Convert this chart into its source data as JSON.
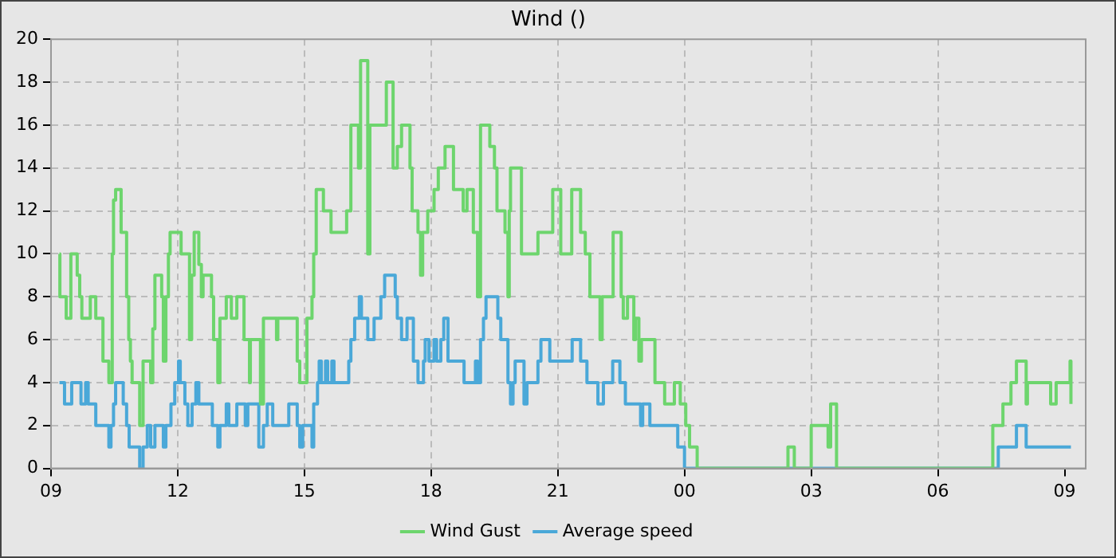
{
  "chart_data": {
    "type": "step",
    "title": "Wind ()",
    "xlim": [
      9,
      33.5
    ],
    "xticks": [
      {
        "value": 9,
        "label": "09"
      },
      {
        "value": 12,
        "label": "12"
      },
      {
        "value": 15,
        "label": "15"
      },
      {
        "value": 18,
        "label": "18"
      },
      {
        "value": 21,
        "label": "21"
      },
      {
        "value": 24,
        "label": "00"
      },
      {
        "value": 27,
        "label": "03"
      },
      {
        "value": 30,
        "label": "06"
      },
      {
        "value": 33,
        "label": "09"
      }
    ],
    "ylim": [
      0,
      20
    ],
    "yticks": [
      0,
      2,
      4,
      6,
      8,
      10,
      12,
      14,
      16,
      18,
      20
    ],
    "grid": true,
    "legend": "bottom",
    "marker": "none",
    "line_style": "solid",
    "series": [
      {
        "name": "Wind Gust",
        "color": "#6dd56d",
        "x": [
          9.2,
          9.21,
          9.36,
          9.47,
          9.62,
          9.68,
          9.73,
          9.93,
          10.06,
          10.23,
          10.37,
          10.45,
          10.48,
          10.53,
          10.66,
          10.79,
          10.84,
          10.88,
          10.92,
          11.1,
          11.18,
          11.36,
          11.41,
          11.46,
          11.62,
          11.66,
          11.72,
          11.78,
          11.82,
          12.08,
          12.28,
          12.33,
          12.39,
          12.5,
          12.56,
          12.6,
          12.8,
          12.85,
          12.95,
          13.0,
          13.15,
          13.27,
          13.4,
          13.57,
          13.7,
          13.72,
          13.96,
          14.03,
          14.34,
          14.37,
          14.83,
          14.89,
          15.06,
          15.18,
          15.22,
          15.28,
          15.45,
          15.63,
          16.0,
          16.1,
          16.28,
          16.33,
          16.5,
          16.55,
          16.94,
          17.1,
          17.2,
          17.3,
          17.5,
          17.55,
          17.69,
          17.75,
          17.8,
          17.92,
          18.07,
          18.17,
          18.33,
          18.53,
          18.76,
          18.85,
          19.0,
          19.1,
          19.17,
          19.39,
          19.5,
          19.56,
          19.75,
          19.82,
          19.85,
          19.88,
          20.14,
          20.53,
          20.88,
          21.07,
          21.33,
          21.54,
          21.65,
          21.76,
          22.0,
          22.05,
          22.31,
          22.5,
          22.55,
          22.65,
          22.8,
          22.84,
          22.92,
          22.98,
          23.3,
          23.53,
          23.76,
          23.9,
          24.03,
          24.12,
          24.3,
          26.45,
          26.6,
          27.0,
          27.4,
          27.46,
          27.6,
          31.3,
          31.54,
          31.73,
          31.86,
          32.09,
          32.12,
          32.67,
          32.8,
          33.13,
          33.15
        ],
        "values": [
          10,
          8,
          7,
          10,
          9,
          8,
          7,
          8,
          7,
          5,
          4,
          10,
          12.5,
          13,
          11,
          8,
          6,
          5,
          4,
          2,
          5,
          4,
          6.5,
          9,
          8,
          5,
          8,
          10,
          11,
          10,
          6,
          9,
          11,
          9.5,
          8,
          9,
          8,
          6,
          4,
          7,
          8,
          7,
          8,
          6,
          4,
          6,
          3,
          7,
          6,
          7,
          5,
          4,
          7,
          8,
          10,
          13,
          12,
          11,
          12,
          16,
          14,
          19,
          10,
          16,
          18,
          14,
          15,
          16,
          14,
          12,
          11,
          9,
          11,
          12,
          13,
          14,
          15,
          13,
          12,
          13,
          11,
          8,
          16,
          15,
          14,
          12,
          11,
          8,
          12,
          14,
          10,
          11,
          13,
          10,
          13,
          11,
          10,
          8,
          6,
          8,
          11,
          8,
          7,
          8,
          6,
          7,
          5,
          6,
          4,
          3,
          4,
          3,
          2,
          1,
          0,
          1,
          0,
          2,
          1,
          3,
          0,
          2,
          3,
          4,
          5,
          3,
          4,
          3,
          4,
          5,
          3
        ]
      },
      {
        "name": "Average speed",
        "color": "#4aa8d8",
        "x": [
          9.2,
          9.32,
          9.49,
          9.71,
          9.82,
          9.88,
          10.06,
          10.37,
          10.42,
          10.48,
          10.53,
          10.71,
          10.79,
          10.85,
          11.1,
          11.18,
          11.28,
          11.36,
          11.46,
          11.66,
          11.72,
          11.84,
          11.93,
          12.02,
          12.06,
          12.17,
          12.24,
          12.34,
          12.43,
          12.5,
          12.82,
          12.95,
          13.0,
          13.15,
          13.21,
          13.4,
          13.6,
          13.66,
          13.92,
          14.03,
          14.12,
          14.25,
          14.63,
          14.83,
          14.89,
          14.96,
          15.18,
          15.22,
          15.31,
          15.35,
          15.4,
          15.5,
          15.55,
          15.65,
          15.7,
          16.05,
          16.1,
          16.19,
          16.3,
          16.35,
          16.5,
          16.65,
          16.81,
          16.9,
          17.15,
          17.2,
          17.3,
          17.43,
          17.58,
          17.69,
          17.82,
          17.86,
          17.95,
          18.07,
          18.13,
          18.23,
          18.3,
          18.4,
          18.78,
          19.05,
          19.1,
          19.17,
          19.24,
          19.3,
          19.58,
          19.65,
          19.82,
          19.88,
          19.94,
          19.99,
          20.2,
          20.27,
          20.53,
          20.6,
          20.81,
          21.34,
          21.54,
          21.69,
          21.95,
          22.08,
          22.3,
          22.47,
          22.6,
          22.96,
          23.01,
          23.18,
          23.84,
          24.0,
          31.43,
          31.86,
          32.09,
          33.15
        ],
        "values": [
          4,
          3,
          4,
          3,
          4,
          3,
          2,
          1,
          2,
          3,
          4,
          3,
          2,
          1,
          0,
          1,
          2,
          1,
          2,
          1,
          2,
          3,
          4,
          5,
          4,
          3,
          2,
          3,
          4,
          3,
          2,
          1,
          2,
          3,
          2,
          3,
          2,
          3,
          1,
          2,
          3,
          2,
          3,
          2,
          1,
          2,
          1,
          3,
          4,
          5,
          4,
          5,
          4,
          5,
          4,
          5,
          6,
          7,
          8,
          7,
          6,
          7,
          8,
          9,
          8,
          7,
          6,
          7,
          5,
          4,
          5,
          6,
          5,
          6,
          5,
          6,
          7,
          5,
          4,
          5,
          4,
          6,
          7,
          8,
          7,
          6,
          4,
          3,
          4,
          5,
          3,
          4,
          5,
          6,
          5,
          6,
          5,
          4,
          3,
          4,
          5,
          4,
          3,
          2,
          3,
          2,
          1,
          0,
          1,
          2,
          1,
          1
        ]
      }
    ]
  }
}
